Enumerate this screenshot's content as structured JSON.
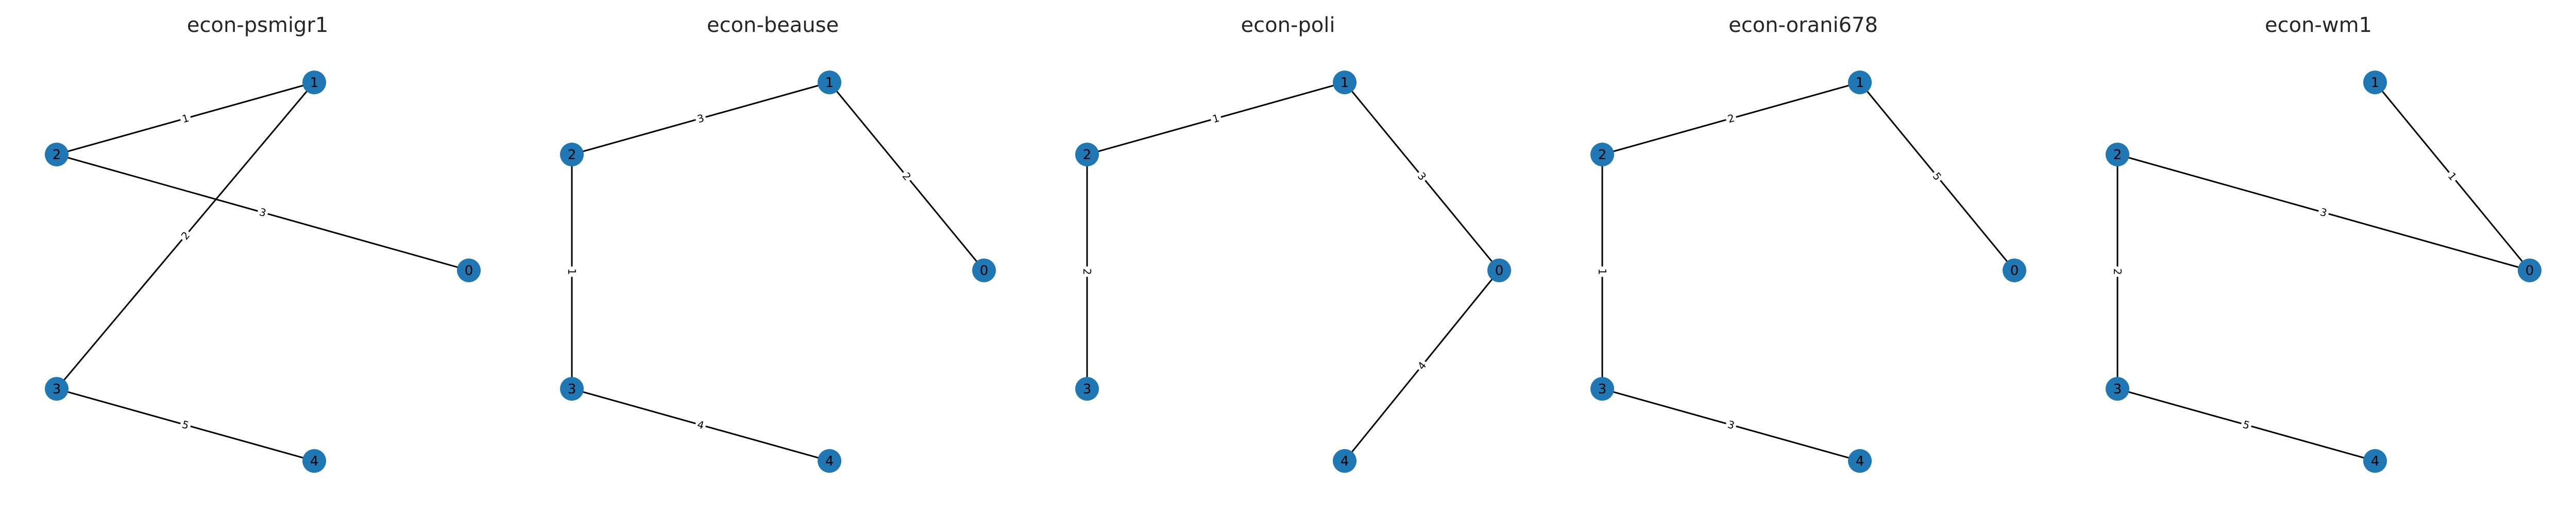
{
  "graphs": [
    {
      "title": "econ-psmigr1",
      "nodes": [
        "0",
        "1",
        "2",
        "3",
        "4"
      ],
      "edges": [
        {
          "source": "2",
          "target": "1",
          "label": "1"
        },
        {
          "source": "1",
          "target": "3",
          "label": "2"
        },
        {
          "source": "2",
          "target": "0",
          "label": "3"
        },
        {
          "source": "3",
          "target": "4",
          "label": "5"
        }
      ]
    },
    {
      "title": "econ-beause",
      "nodes": [
        "0",
        "1",
        "2",
        "3",
        "4"
      ],
      "edges": [
        {
          "source": "2",
          "target": "1",
          "label": "3"
        },
        {
          "source": "1",
          "target": "0",
          "label": "2"
        },
        {
          "source": "2",
          "target": "3",
          "label": "1"
        },
        {
          "source": "3",
          "target": "4",
          "label": "4"
        }
      ]
    },
    {
      "title": "econ-poli",
      "nodes": [
        "0",
        "1",
        "2",
        "3",
        "4"
      ],
      "edges": [
        {
          "source": "2",
          "target": "1",
          "label": "1"
        },
        {
          "source": "1",
          "target": "0",
          "label": "3"
        },
        {
          "source": "2",
          "target": "3",
          "label": "2"
        },
        {
          "source": "0",
          "target": "4",
          "label": "4"
        }
      ]
    },
    {
      "title": "econ-orani678",
      "nodes": [
        "0",
        "1",
        "2",
        "3",
        "4"
      ],
      "edges": [
        {
          "source": "2",
          "target": "1",
          "label": "2"
        },
        {
          "source": "1",
          "target": "0",
          "label": "5"
        },
        {
          "source": "2",
          "target": "3",
          "label": "1"
        },
        {
          "source": "3",
          "target": "4",
          "label": "3"
        }
      ]
    },
    {
      "title": "econ-wm1",
      "nodes": [
        "0",
        "1",
        "2",
        "3",
        "4"
      ],
      "edges": [
        {
          "source": "1",
          "target": "0",
          "label": "1"
        },
        {
          "source": "2",
          "target": "0",
          "label": "3"
        },
        {
          "source": "2",
          "target": "3",
          "label": "2"
        },
        {
          "source": "3",
          "target": "4",
          "label": "5"
        }
      ]
    }
  ],
  "colors": {
    "node_fill": "#1f77b4",
    "edge": "#000000",
    "title": "#262626"
  }
}
